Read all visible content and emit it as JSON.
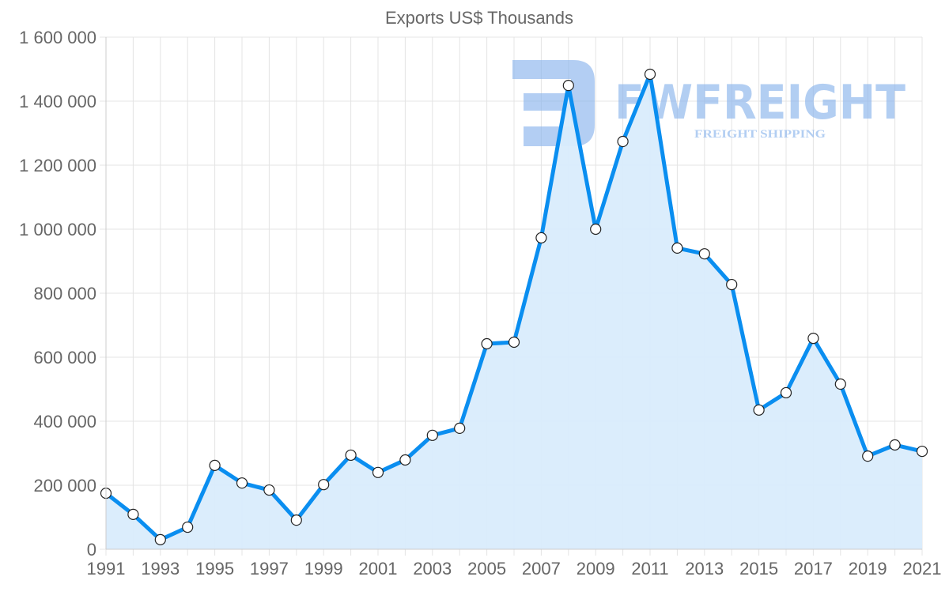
{
  "chart_data": {
    "type": "area",
    "title": "Exports US$ Thousands",
    "xlabel": "",
    "ylabel": "",
    "x": [
      1991,
      1992,
      1993,
      1994,
      1995,
      1996,
      1997,
      1998,
      1999,
      2000,
      2001,
      2002,
      2003,
      2004,
      2005,
      2006,
      2007,
      2008,
      2009,
      2010,
      2011,
      2012,
      2013,
      2014,
      2015,
      2016,
      2017,
      2018,
      2019,
      2020,
      2021
    ],
    "series": [
      {
        "name": "Exports US$ Thousands",
        "values": [
          175000,
          109000,
          30000,
          69000,
          262000,
          207000,
          185000,
          91000,
          202000,
          294000,
          240000,
          279000,
          356000,
          378000,
          642000,
          647000,
          973000,
          1449000,
          1000000,
          1274000,
          1484000,
          941000,
          923000,
          827000,
          435000,
          489000,
          659000,
          516000,
          291000,
          326000,
          306000
        ]
      }
    ],
    "ylim": [
      0,
      1600000
    ],
    "xlim": [
      1991,
      2021
    ],
    "yticks": [
      "0",
      "200 000",
      "400 000",
      "600 000",
      "800 000",
      "1 000 000",
      "1 200 000",
      "1 400 000",
      "1 600 000"
    ],
    "xticks": [
      "1991",
      "1993",
      "1995",
      "1997",
      "1999",
      "2001",
      "2003",
      "2005",
      "2007",
      "2009",
      "2011",
      "2013",
      "2015",
      "2017",
      "2019",
      "2021"
    ],
    "grid": true,
    "legend": "none",
    "colors": {
      "line": "#0a8ef0",
      "fill": "#d9ecfc",
      "grid": "#e4e4e4",
      "watermark": "#8ab4ec"
    }
  },
  "watermark": {
    "brand": "FWFREIGHT",
    "tagline": "FREIGHT SHIPPING"
  }
}
